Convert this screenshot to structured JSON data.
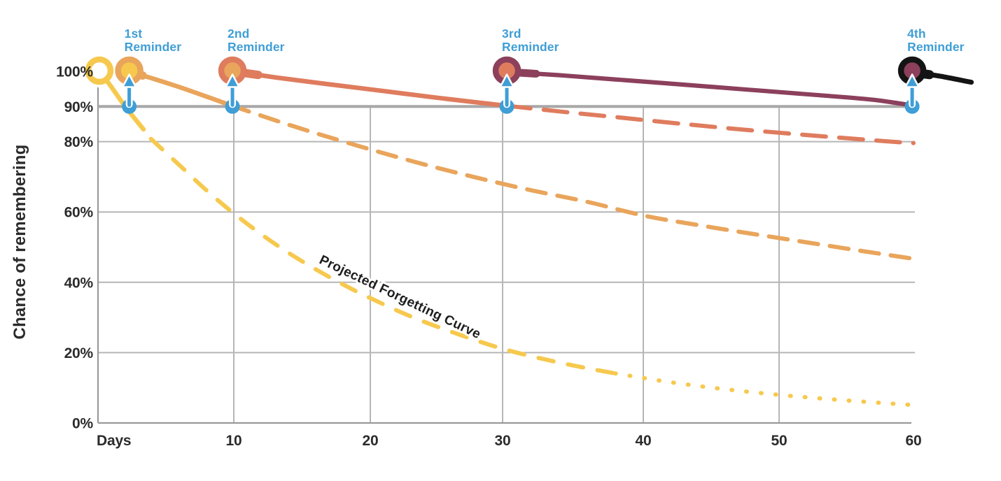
{
  "colors": {
    "yellow": "#F6C94E",
    "orange": "#E9A55C",
    "salmon": "#DF7C5E",
    "maroon": "#8C405C",
    "black": "#141414",
    "blue": "#3F9ED6",
    "white": "#FFFFFF",
    "threshold_gray": "#A8A8A8",
    "grid_gray": "#B6B6B6",
    "axis_gray": "#9A9A9A",
    "text_dark": "#2B2B2B"
  },
  "chart_data": {
    "type": "line",
    "ylabel": "Chance of remembering",
    "xlabel_unit": "Days",
    "ylim": [
      0,
      100
    ],
    "xlim_days": [
      0,
      65
    ],
    "grid": true,
    "threshold_pct": 90,
    "y_ticks": [
      {
        "pct": 100,
        "label": "100%"
      },
      {
        "pct": 90,
        "label": "90%"
      },
      {
        "pct": 80,
        "label": "80%"
      },
      {
        "pct": 60,
        "label": "60%"
      },
      {
        "pct": 40,
        "label": "40%"
      },
      {
        "pct": 20,
        "label": "20%"
      },
      {
        "pct": 0,
        "label": "0%"
      }
    ],
    "x_ticks": [
      {
        "day": 0,
        "label": "Days"
      },
      {
        "day": 10,
        "label": "10"
      },
      {
        "day": 20,
        "label": "20"
      },
      {
        "day": 30,
        "label": "30"
      },
      {
        "day": 40,
        "label": "40"
      },
      {
        "day": 50,
        "label": "50"
      },
      {
        "day": 60,
        "label": "60"
      }
    ],
    "annotation": {
      "text": "Projected Forgetting Curve",
      "day": 22.3,
      "pct": 36,
      "angle_deg": 25.5
    },
    "start_marker": {
      "day": 0.1,
      "pct": 100,
      "circle_fill": "white",
      "circle_ring": "yellow"
    },
    "reminders": [
      {
        "line1": "1st",
        "line2": "Reminder",
        "day": 2.3,
        "dot_pct": 90,
        "circle_fill": "yellow",
        "circle_ring": "orange"
      },
      {
        "line1": "2nd",
        "line2": "Reminder",
        "day": 9.9,
        "dot_pct": 90,
        "circle_fill": "orange",
        "circle_ring": "salmon"
      },
      {
        "line1": "3rd",
        "line2": "Reminder",
        "day": 30.3,
        "dot_pct": 90,
        "circle_fill": "salmon",
        "circle_ring": "maroon"
      },
      {
        "line1": "4th",
        "line2": "Reminder",
        "day": 59.9,
        "dot_pct": 90,
        "circle_fill": "maroon",
        "circle_ring": "black"
      }
    ],
    "series": [
      {
        "name": "initial-learning-solid",
        "color_key": "yellow",
        "style": "solid",
        "width": 6.5,
        "lead_width": 11,
        "points": [
          [
            0.1,
            100
          ],
          [
            0.9,
            96
          ],
          [
            2,
            90
          ],
          [
            3.35,
            83.5
          ]
        ]
      },
      {
        "name": "projected-forgetting-dashed",
        "color_key": "yellow",
        "style": "dashed",
        "dash": "22 21",
        "width": 6,
        "points": [
          [
            3.9,
            80.8
          ],
          [
            6,
            73.3
          ],
          [
            8,
            66.1
          ],
          [
            10,
            59.6
          ],
          [
            12,
            53.7
          ],
          [
            14,
            48.4
          ],
          [
            16,
            43.7
          ],
          [
            18,
            39.4
          ],
          [
            20,
            35.5
          ],
          [
            23,
            30.4
          ],
          [
            26,
            26.1
          ],
          [
            30,
            21.1
          ],
          [
            34,
            17.2
          ],
          [
            38,
            14.1
          ]
        ]
      },
      {
        "name": "projected-forgetting-tail-dots",
        "color_key": "yellow",
        "style": "dashed",
        "dash": "1 20",
        "width": 6,
        "points": [
          [
            38,
            14.1
          ],
          [
            42,
            11.6
          ],
          [
            46,
            9.6
          ],
          [
            50,
            8
          ],
          [
            54,
            6.7
          ],
          [
            58,
            5.6
          ],
          [
            60,
            5.1
          ]
        ]
      },
      {
        "name": "after-1st-reminder-solid",
        "color_key": "orange",
        "style": "solid",
        "width": 6.5,
        "lead_width": 12,
        "points": [
          [
            2.4,
            99.8
          ],
          [
            4,
            98
          ],
          [
            6,
            95.5
          ],
          [
            8,
            92.8
          ],
          [
            9.8,
            90.3
          ]
        ]
      },
      {
        "name": "after-1st-reminder-projected-dashed",
        "color_key": "orange",
        "style": "dashed",
        "dash": "27 17",
        "width": 6,
        "points": [
          [
            9.8,
            90.3
          ],
          [
            13,
            86.1
          ],
          [
            16,
            82.4
          ],
          [
            20,
            77.8
          ],
          [
            24,
            73.6
          ],
          [
            28,
            69.8
          ],
          [
            32,
            66.2
          ],
          [
            36,
            62.9
          ],
          [
            40,
            59
          ],
          [
            44,
            56.3
          ],
          [
            48,
            53.8
          ],
          [
            52,
            51.4
          ],
          [
            56,
            49
          ],
          [
            60,
            46.7
          ]
        ]
      },
      {
        "name": "after-2nd-reminder-solid",
        "color_key": "salmon",
        "style": "solid",
        "width": 6.5,
        "lead_width": 12,
        "points": [
          [
            10.3,
            99.8
          ],
          [
            13,
            98.3
          ],
          [
            17,
            96.3
          ],
          [
            21,
            94.4
          ],
          [
            25,
            92.5
          ],
          [
            30.3,
            90.2
          ]
        ]
      },
      {
        "name": "after-2nd-reminder-projected-dashed",
        "color_key": "salmon",
        "style": "dashed",
        "dash": "34 19",
        "width": 6,
        "points": [
          [
            30.3,
            90.2
          ],
          [
            34,
            88.6
          ],
          [
            38,
            87
          ],
          [
            43,
            85
          ],
          [
            48,
            83.2
          ],
          [
            53,
            81.6
          ],
          [
            58,
            80.1
          ],
          [
            60,
            79.6
          ]
        ]
      },
      {
        "name": "after-3rd-reminder-solid",
        "color_key": "maroon",
        "style": "solid",
        "width": 6.2,
        "lead_width": 11,
        "points": [
          [
            30.4,
            99.8
          ],
          [
            34,
            98.9
          ],
          [
            38,
            97.7
          ],
          [
            43,
            96.2
          ],
          [
            48,
            94.7
          ],
          [
            53,
            93.2
          ],
          [
            57,
            91.9
          ],
          [
            59.9,
            90.3
          ]
        ]
      },
      {
        "name": "after-4th-reminder-solid",
        "color_key": "black",
        "style": "solid",
        "width": 7,
        "lead_width": 13,
        "points": [
          [
            60.2,
            99.6
          ],
          [
            62,
            98.6
          ],
          [
            64.3,
            96.9
          ]
        ]
      }
    ]
  }
}
